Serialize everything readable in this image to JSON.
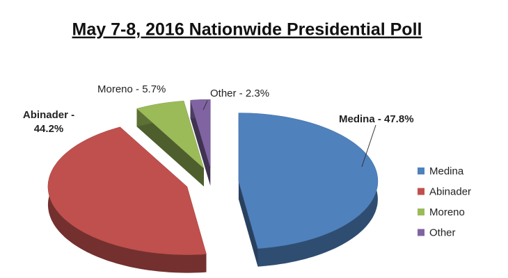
{
  "chart_data": {
    "type": "pie",
    "title": "May 7-8, 2016 Nationwide Presidential Poll",
    "categories": [
      "Medina",
      "Abinader",
      "Moreno",
      "Other"
    ],
    "values": [
      47.8,
      44.2,
      5.7,
      2.3
    ],
    "value_labels": [
      "Medina - 47.8%",
      "Abinader - 44.2%",
      "Moreno - 5.7%",
      "Other - 2.3%"
    ],
    "colors": [
      "#4f81bd",
      "#c0504d",
      "#9bbb59",
      "#8064a2"
    ],
    "legend": "right"
  }
}
